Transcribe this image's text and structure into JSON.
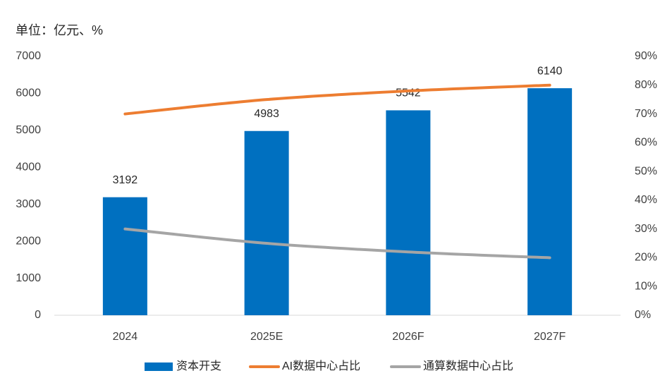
{
  "chart_data": {
    "type": "bar_line",
    "subtitle": "单位：亿元、%",
    "categories": [
      "2024",
      "2025E",
      "2026F",
      "2027F"
    ],
    "series": [
      {
        "name": "资本开支",
        "type": "bar",
        "color": "#0070c0",
        "values": [
          3192,
          4983,
          5542,
          6140
        ]
      },
      {
        "name": "AI数据中心占比",
        "type": "line",
        "axis": "y2",
        "color": "#ed7d31",
        "values": [
          70,
          75,
          78,
          80
        ]
      },
      {
        "name": "通算数据中心占比",
        "type": "line",
        "axis": "y2",
        "color": "#a5a5a5",
        "values": [
          30,
          25,
          22,
          20
        ]
      }
    ],
    "ylim": [
      0,
      7000
    ],
    "yticks": [
      0,
      1000,
      2000,
      3000,
      4000,
      5000,
      6000,
      7000
    ],
    "y2lim": [
      0,
      90
    ],
    "y2ticks": [
      {
        "value": 0,
        "label": "0%"
      },
      {
        "value": 10,
        "label": "10%"
      },
      {
        "value": 20,
        "label": "20%"
      },
      {
        "value": 30,
        "label": "30%"
      },
      {
        "value": 40,
        "label": "40%"
      },
      {
        "value": 50,
        "label": "50%"
      },
      {
        "value": 60,
        "label": "60%"
      },
      {
        "value": 70,
        "label": "70%"
      },
      {
        "value": 80,
        "label": "80%"
      },
      {
        "value": 90,
        "label": "90%"
      }
    ],
    "legend": "bottom"
  }
}
